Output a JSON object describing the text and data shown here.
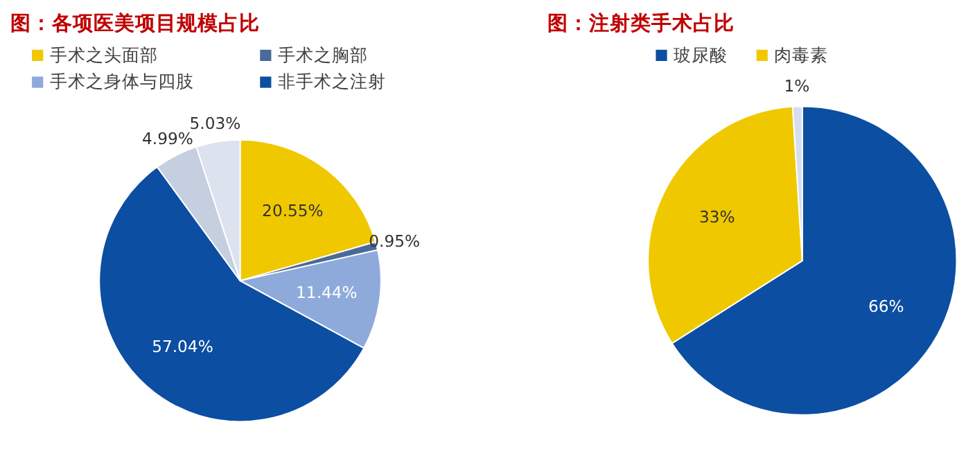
{
  "chart_data": [
    {
      "type": "pie",
      "title": "图：各项医美项目规模占比",
      "categories": [
        "手术之头面部",
        "手术之胸部",
        "手术之身体与四肢",
        "非手术之注射",
        null,
        null
      ],
      "values": [
        20.55,
        0.95,
        11.44,
        57.04,
        4.99,
        5.03
      ],
      "value_labels": [
        "20.55%",
        "0.95%",
        "11.44%",
        "57.04%",
        "4.99%",
        "5.03%"
      ],
      "colors": [
        "#f0c800",
        "#4a6a9a",
        "#8eaadb",
        "#0b4ea2",
        "#c5cfe0",
        "#dde3ee"
      ],
      "legend": "top"
    },
    {
      "type": "pie",
      "title": "图：注射类手术占比",
      "categories": [
        "玻尿酸",
        "肉毒素",
        null
      ],
      "values": [
        66,
        33,
        1
      ],
      "value_labels": [
        "66%",
        "33%",
        "1%"
      ],
      "colors": [
        "#0b4ea2",
        "#f0c800",
        "#d6dff0"
      ],
      "legend": "top"
    }
  ]
}
